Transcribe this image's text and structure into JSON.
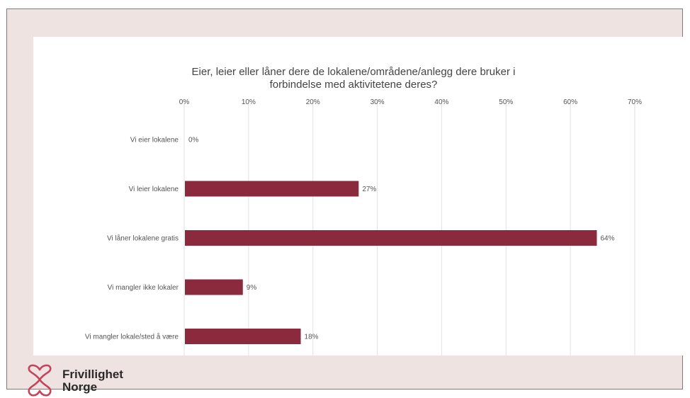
{
  "chart_data": {
    "type": "bar",
    "orientation": "horizontal",
    "title": "Eier, leier eller låner dere de lokalene/områdene/anlegg dere bruker i forbindelse med aktivitetene deres?",
    "title_lines": [
      "Eier, leier eller låner dere de lokalene/områdene/anlegg dere bruker i",
      "forbindelse med aktivitetene deres?"
    ],
    "categories": [
      "Vi eier lokalene",
      "Vi leier lokalene",
      "Vi låner lokalene gratis",
      "Vi mangler ikke lokaler",
      "Vi mangler lokale/sted å være"
    ],
    "values": [
      0,
      27,
      64,
      9,
      18
    ],
    "value_labels": [
      "0%",
      "27%",
      "64%",
      "9%",
      "18%"
    ],
    "xlim": [
      0,
      70
    ],
    "xticks": [
      0,
      10,
      20,
      30,
      40,
      50,
      60,
      70
    ],
    "xtick_labels": [
      "0%",
      "10%",
      "20%",
      "30%",
      "40%",
      "50%",
      "60%",
      "70%"
    ],
    "x_axis_position": "top",
    "grid": "vertical",
    "legend": "none",
    "bar_color": "#8b2a3c",
    "grid_color": "#e2e2e2",
    "text_color": "#555555",
    "title_color": "#444444"
  },
  "brand": {
    "name_line1": "Frivillighet",
    "name_line2": "Norge",
    "logo_icon": "heart-outline-logo",
    "logo_color": "#c4445a",
    "background_color": "#efe3e1"
  }
}
